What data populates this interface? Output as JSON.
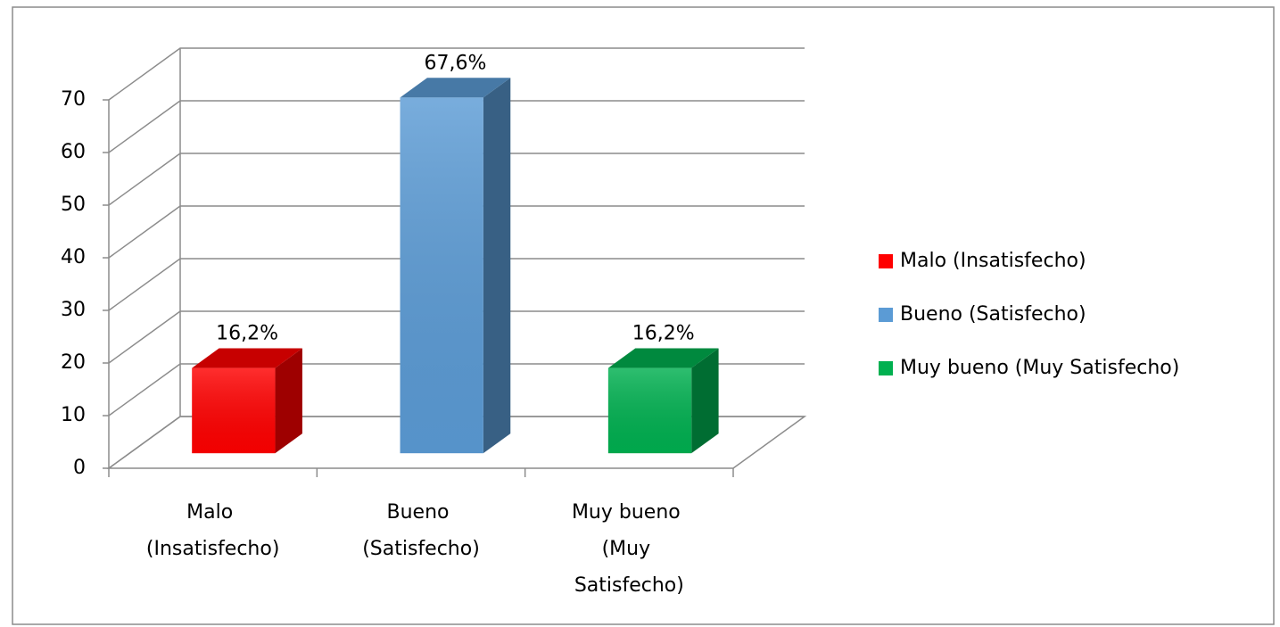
{
  "chart_data": {
    "type": "bar3d",
    "categories": [
      "Malo (Insatisfecho)",
      "Bueno (Satisfecho)",
      "Muy bueno (Muy Satisfecho)"
    ],
    "values": [
      16.2,
      67.6,
      16.2
    ],
    "value_labels": [
      "16,2%",
      "67,6%",
      "16,2%"
    ],
    "colors": [
      "#ff0000",
      "#5b9bd5",
      "#00b050"
    ],
    "ylim": [
      0,
      70
    ],
    "yticks": [
      0,
      10,
      20,
      30,
      40,
      50,
      60,
      70
    ],
    "grid": true,
    "legend": "right"
  }
}
